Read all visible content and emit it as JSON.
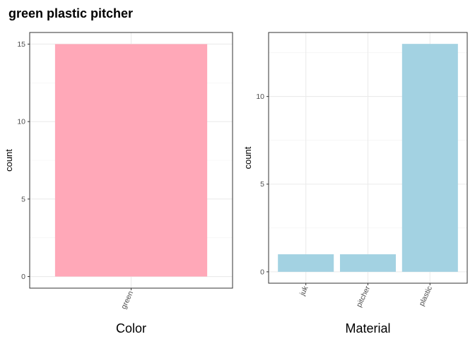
{
  "page_title": "green plastic pitcher",
  "chart_data": [
    {
      "type": "bar",
      "categories": [
        "green"
      ],
      "values": [
        15
      ],
      "xlabel": "Color",
      "ylabel": "count",
      "ylim": [
        -0.75,
        15.75
      ],
      "yticks": [
        0,
        5,
        10,
        15
      ],
      "bar_color": "#FFA8B8",
      "grid": true
    },
    {
      "type": "bar",
      "categories": [
        "juk",
        "pitcher",
        "plastic"
      ],
      "values": [
        1,
        1,
        13
      ],
      "xlabel": "Material",
      "ylabel": "count",
      "ylim": [
        -0.65,
        13.65
      ],
      "yticks": [
        0,
        5,
        10
      ],
      "bar_color": "#A3D2E2",
      "grid": true
    }
  ]
}
